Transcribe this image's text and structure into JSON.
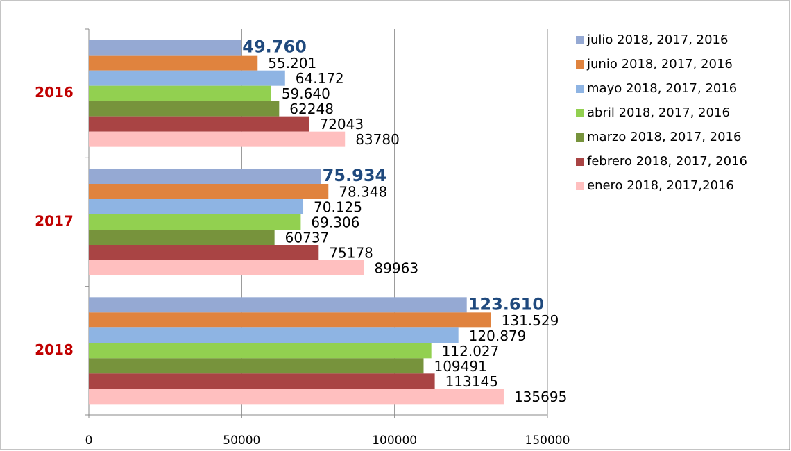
{
  "chart_data": {
    "type": "hbar",
    "categories": [
      "2016",
      "2017",
      "2018"
    ],
    "xlim": [
      0,
      150000
    ],
    "xticks": [
      0,
      50000,
      100000,
      150000
    ],
    "grid": true,
    "legend": "right",
    "series": [
      {
        "name": "julio 2018, 2017, 2016",
        "color": "#95a9d3",
        "values": [
          49760,
          75934,
          123610
        ],
        "value_labels": [
          "49.760",
          "75.934",
          "123.610"
        ]
      },
      {
        "name": "junio 2018, 2017, 2016",
        "color": "#e0833e",
        "values": [
          55201,
          78348,
          131529
        ],
        "value_labels": [
          "55.201",
          "78.348",
          "131.529"
        ]
      },
      {
        "name": "mayo 2018, 2017, 2016",
        "color": "#8eb4e3",
        "values": [
          64172,
          70125,
          120879
        ],
        "value_labels": [
          "64.172",
          "70.125",
          "120.879"
        ]
      },
      {
        "name": "abril 2018, 2017, 2016",
        "color": "#92d050",
        "values": [
          59640,
          69306,
          112027
        ],
        "value_labels": [
          "59.640",
          "69.306",
          "112.027"
        ]
      },
      {
        "name": "marzo 2018, 2017, 2016",
        "color": "#77933c",
        "values": [
          62248,
          60737,
          109491
        ]
      },
      {
        "name": "febrero 2018, 2017, 2016",
        "color": "#a94444",
        "values": [
          72043,
          75178,
          113145
        ]
      },
      {
        "name": "enero 2018, 2017,2016",
        "color": "#ffbfbf",
        "values": [
          83780,
          89963,
          135695
        ]
      }
    ]
  }
}
